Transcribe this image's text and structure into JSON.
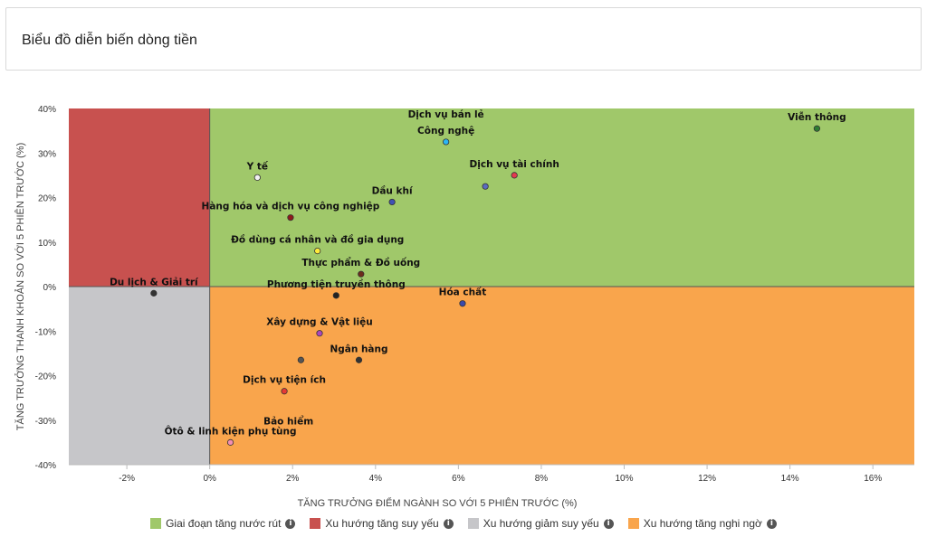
{
  "card": {
    "title": "Biểu đồ diễn biến dòng tiền"
  },
  "icons": {
    "info": "info-icon"
  },
  "colors": {
    "q_top_right": "#a0c86a",
    "q_top_left": "#c8514f",
    "q_bottom_left": "#c6c6c9",
    "q_bottom_right": "#f9a54c"
  },
  "chart_data": {
    "type": "scatter",
    "title": "",
    "xlabel": "TĂNG TRƯỞNG ĐIỂM NGÀNH SO VỚI 5 PHIÊN TRƯỚC (%)",
    "ylabel": "TĂNG TRƯỞNG THANH KHOẢN SO VỚI 5 PHIÊN TRƯỚC (%)",
    "xlim": [
      -3.4,
      17.0
    ],
    "ylim": [
      -40,
      40
    ],
    "x_ticks": [
      "-2%",
      "0%",
      "2%",
      "4%",
      "6%",
      "8%",
      "10%",
      "12%",
      "14%",
      "16%"
    ],
    "x_tick_values": [
      -2,
      0,
      2,
      4,
      6,
      8,
      10,
      12,
      14,
      16
    ],
    "y_ticks": [
      "40%",
      "30%",
      "20%",
      "10%",
      "0%",
      "-10%",
      "-20%",
      "-30%",
      "-40%"
    ],
    "y_tick_values": [
      40,
      30,
      20,
      10,
      0,
      -10,
      -20,
      -30,
      -40
    ],
    "legend_position": "bottom",
    "legend": [
      {
        "label": "Giai đoạn tăng nước rút",
        "color": "#a0c86a"
      },
      {
        "label": "Xu hướng tăng suy yếu",
        "color": "#c8514f"
      },
      {
        "label": "Xu hướng giảm suy yếu",
        "color": "#c6c6c9"
      },
      {
        "label": "Xu hướng tăng nghi ngờ",
        "color": "#f9a54c"
      }
    ],
    "points": [
      {
        "label": "Viễn thông",
        "x": 14.65,
        "y": 35.5,
        "color": "#2e7d32",
        "label_side": "above"
      },
      {
        "label": "Dịch vụ bán lẻ",
        "x": 5.7,
        "y": 38.0,
        "color": "#1e88e5",
        "label_side": "none"
      },
      {
        "label": "Công nghệ",
        "x": 5.7,
        "y": 32.5,
        "color": "#29b6f6",
        "label_side": "above"
      },
      {
        "label": "Dịch vụ tài chính",
        "x": 7.35,
        "y": 25.0,
        "color": "#e53950",
        "label_side": "above"
      },
      {
        "label": "",
        "x": 6.65,
        "y": 22.5,
        "color": "#5c6bc0",
        "label_side": "none"
      },
      {
        "label": "Y tế",
        "x": 1.15,
        "y": 24.5,
        "color": "#f2f2f2",
        "label_side": "above"
      },
      {
        "label": "Dầu khí",
        "x": 4.4,
        "y": 19.0,
        "color": "#3f51b5",
        "label_side": "above"
      },
      {
        "label": "Hàng hóa và dịch vụ công nghiệp",
        "x": 1.95,
        "y": 15.5,
        "color": "#8e1b1b",
        "label_side": "above"
      },
      {
        "label": "Đồ dùng cá nhân và đồ gia dụng",
        "x": 2.6,
        "y": 8.0,
        "color": "#ffeb3b",
        "label_side": "above"
      },
      {
        "label": "Thực phẩm & Đồ uống",
        "x": 3.65,
        "y": 2.8,
        "color": "#6d2c1b",
        "label_side": "above"
      },
      {
        "label": "Du lịch & Giải trí",
        "x": -1.35,
        "y": -1.5,
        "color": "#333333",
        "label_side": "above"
      },
      {
        "label": "Phương tiện truyền thông",
        "x": 3.05,
        "y": -2.0,
        "color": "#222222",
        "label_side": "above"
      },
      {
        "label": "Hóa chất",
        "x": 6.1,
        "y": -3.8,
        "color": "#3949ab",
        "label_side": "above"
      },
      {
        "label": "Xây dựng & Vật liệu",
        "x": 2.65,
        "y": -10.5,
        "color": "#ab47bc",
        "label_side": "above"
      },
      {
        "label": "Ngân hàng",
        "x": 3.6,
        "y": -16.5,
        "color": "#333333",
        "label_side": "above"
      },
      {
        "label": "",
        "x": 2.2,
        "y": -16.5,
        "color": "#555555",
        "label_side": "none"
      },
      {
        "label": "Dịch vụ tiện ích",
        "x": 1.8,
        "y": -23.5,
        "color": "#e53935",
        "label_side": "above"
      },
      {
        "label": "Bảo hiểm",
        "x": 1.9,
        "y": -31.0,
        "color": "#333333",
        "label_side": "none"
      },
      {
        "label": "Ôtô & linh kiện phụ tùng",
        "x": 0.5,
        "y": -35.0,
        "color": "#f48fb1",
        "label_side": "above"
      }
    ]
  }
}
